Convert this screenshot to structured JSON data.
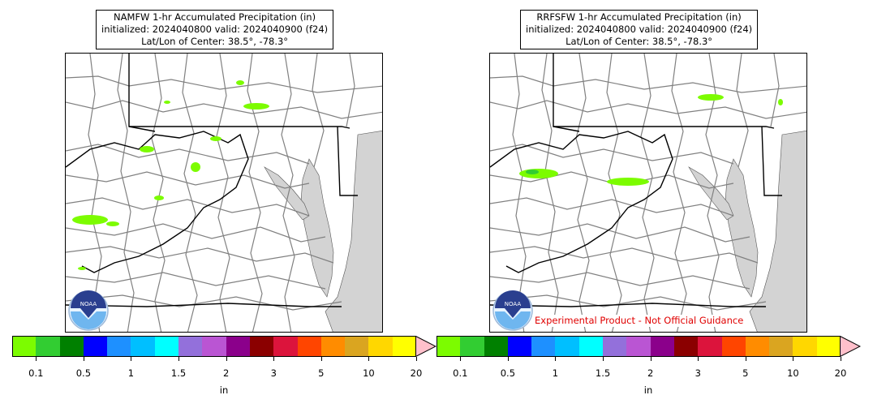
{
  "panels": [
    {
      "title_line1": "NAMFW 1-hr Accumulated Precipitation (in)",
      "title_line2": "initialized: 2024040800 valid: 2024040900 (f24)",
      "title_line3": "Lat/Lon of Center: 38.5°, -78.3°",
      "logo_text": "NOAA",
      "warning": ""
    },
    {
      "title_line1": "RRFSFW 1-hr Accumulated Precipitation (in)",
      "title_line2": "initialized: 2024040800 valid: 2024040900 (f24)",
      "title_line3": "Lat/Lon of Center: 38.5°, -78.3°",
      "logo_text": "NOAA",
      "warning": "Experimental Product - Not Official Guidance"
    }
  ],
  "colorbar": {
    "label": "in",
    "ticks": [
      "0.1",
      "0.5",
      "1",
      "1.5",
      "2",
      "3",
      "5",
      "10",
      "20"
    ],
    "colors": [
      "#7cfc00",
      "#32cd32",
      "#008000",
      "#0000ff",
      "#1e90ff",
      "#00bfff",
      "#00ffff",
      "#9370db",
      "#ba55d3",
      "#8b008b",
      "#8b0000",
      "#dc143c",
      "#ff4500",
      "#ff8c00",
      "#daa520",
      "#ffd700",
      "#ffff00"
    ],
    "extend_color": "#ffc0cb"
  },
  "colors": {
    "land": "#ffffff",
    "water": "#d3d3d3",
    "county_lines": "#808080",
    "state_lines": "#000000",
    "precip": "#7cfc00"
  }
}
